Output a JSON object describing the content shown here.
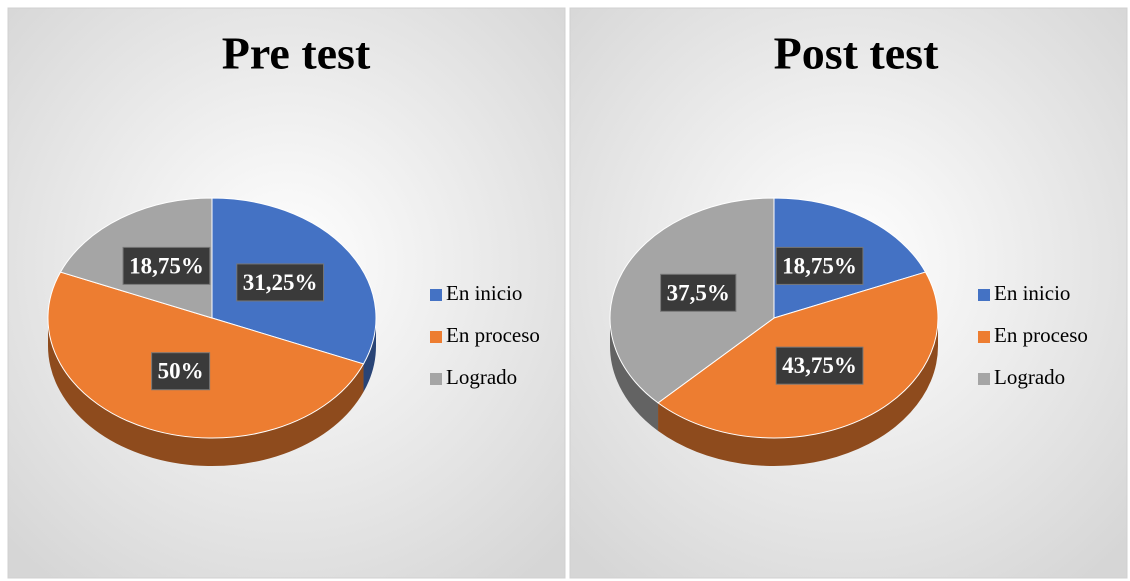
{
  "chart_data": [
    {
      "type": "pie",
      "title": "Pre test",
      "categories": [
        "En inicio",
        "En proceso",
        "Logrado"
      ],
      "values": [
        31.25,
        50,
        18.75
      ],
      "value_labels": [
        "31,25%",
        "50%",
        "18,75%"
      ],
      "colors": [
        "#4472c4",
        "#ed7d31",
        "#a5a5a5"
      ]
    },
    {
      "type": "pie",
      "title": "Post test",
      "categories": [
        "En inicio",
        "En proceso",
        "Logrado"
      ],
      "values": [
        18.75,
        43.75,
        37.5
      ],
      "value_labels": [
        "18,75%",
        "43,75%",
        "37,5%"
      ],
      "colors": [
        "#4472c4",
        "#ed7d31",
        "#a5a5a5"
      ]
    }
  ]
}
